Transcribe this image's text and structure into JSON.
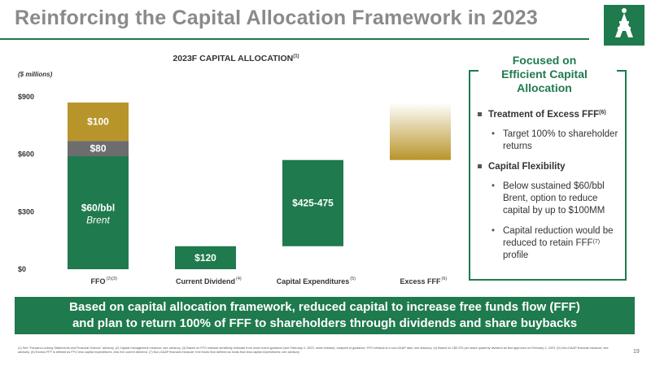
{
  "header": {
    "title": "Reinforcing the Capital Allocation Framework in 2023"
  },
  "brand": {
    "accent": "#1f7a4e",
    "gold": "#b8952a",
    "grey": "#6d6d6d"
  },
  "chart_data": {
    "type": "bar",
    "title": "2023F CAPITAL ALLOCATION",
    "title_sup": "(1)",
    "ylabel": "($ millions)",
    "ylim": [
      0,
      900
    ],
    "yticks": [
      "$0",
      "$300",
      "$600",
      "$900"
    ],
    "ytick_values": [
      0,
      300,
      600,
      900
    ],
    "grid": false,
    "categories": [
      {
        "label": "FFO",
        "sup": "(2)(3)"
      },
      {
        "label": "Current Dividend",
        "sup": "(4)"
      },
      {
        "label": "Capital Expenditures",
        "sup": "(5)"
      },
      {
        "label": "Excess FFF",
        "sup": "(6)"
      }
    ],
    "bars": [
      {
        "category": 0,
        "segments": [
          {
            "from": 0,
            "to": 590,
            "color": "#1f7a4e",
            "label": "$60/bbl",
            "sublabel": "Brent"
          },
          {
            "from": 590,
            "to": 670,
            "color": "#6d6d6d",
            "label": "$80"
          },
          {
            "from": 670,
            "to": 870,
            "color": "#b8952a",
            "label": "$100"
          }
        ]
      },
      {
        "category": 1,
        "segments": [
          {
            "from": 0,
            "to": 120,
            "color": "#1f7a4e",
            "label": "$120"
          }
        ]
      },
      {
        "category": 2,
        "segments": [
          {
            "from": 120,
            "to": 570,
            "color": "#1f7a4e",
            "label": "$425-475"
          }
        ]
      },
      {
        "category": 3,
        "segments": [
          {
            "from": 570,
            "to": 870,
            "color": "#b8952a",
            "label": "",
            "gradient": true
          }
        ]
      }
    ]
  },
  "focus": {
    "title_lines": [
      "Focused on",
      "Efficient Capital",
      "Allocation"
    ],
    "items": [
      {
        "label": "Treatment of Excess FFF",
        "sup": "(6)",
        "subs": [
          {
            "text": "Target 100% to shareholder returns"
          }
        ]
      },
      {
        "label": "Capital Flexibility",
        "sup": "",
        "subs": [
          {
            "text": "Below sustained $60/bbl Brent, option to reduce capital by up to $100MM"
          },
          {
            "text": "Capital reduction would be reduced to retain FFF",
            "sup": "(7)",
            "after": " profile"
          }
        ]
      }
    ]
  },
  "banner": {
    "line1": "Based on capital allocation framework, reduced capital to increase free funds flow (FFF)",
    "line2": "and plan to return 100% of FFF to shareholders through dividends and share buybacks"
  },
  "footnote": "(1) See \"Forward-Looking Statements and Financial Outlook\" advisory. (2) Capital management measure; see advisory. (3) Based on FFO netback sensitivity estimate from most recent guidance (see February 2, 2023, news release); midpoint of guidance; FFO netback is a non-GAAP ratio; see advisory. (4) Based on C$0.375 per share quarterly dividend as first approved on February 2, 2023. (5) Non-GAAP financial measure; see advisory. (6) Excess FFF is defined as FFO less capital expenditures, less the current dividend. (7) Non-GAAP financial measure; free funds flow defined as funds flow less capital expenditures; see advisory.",
  "page_number": "19"
}
